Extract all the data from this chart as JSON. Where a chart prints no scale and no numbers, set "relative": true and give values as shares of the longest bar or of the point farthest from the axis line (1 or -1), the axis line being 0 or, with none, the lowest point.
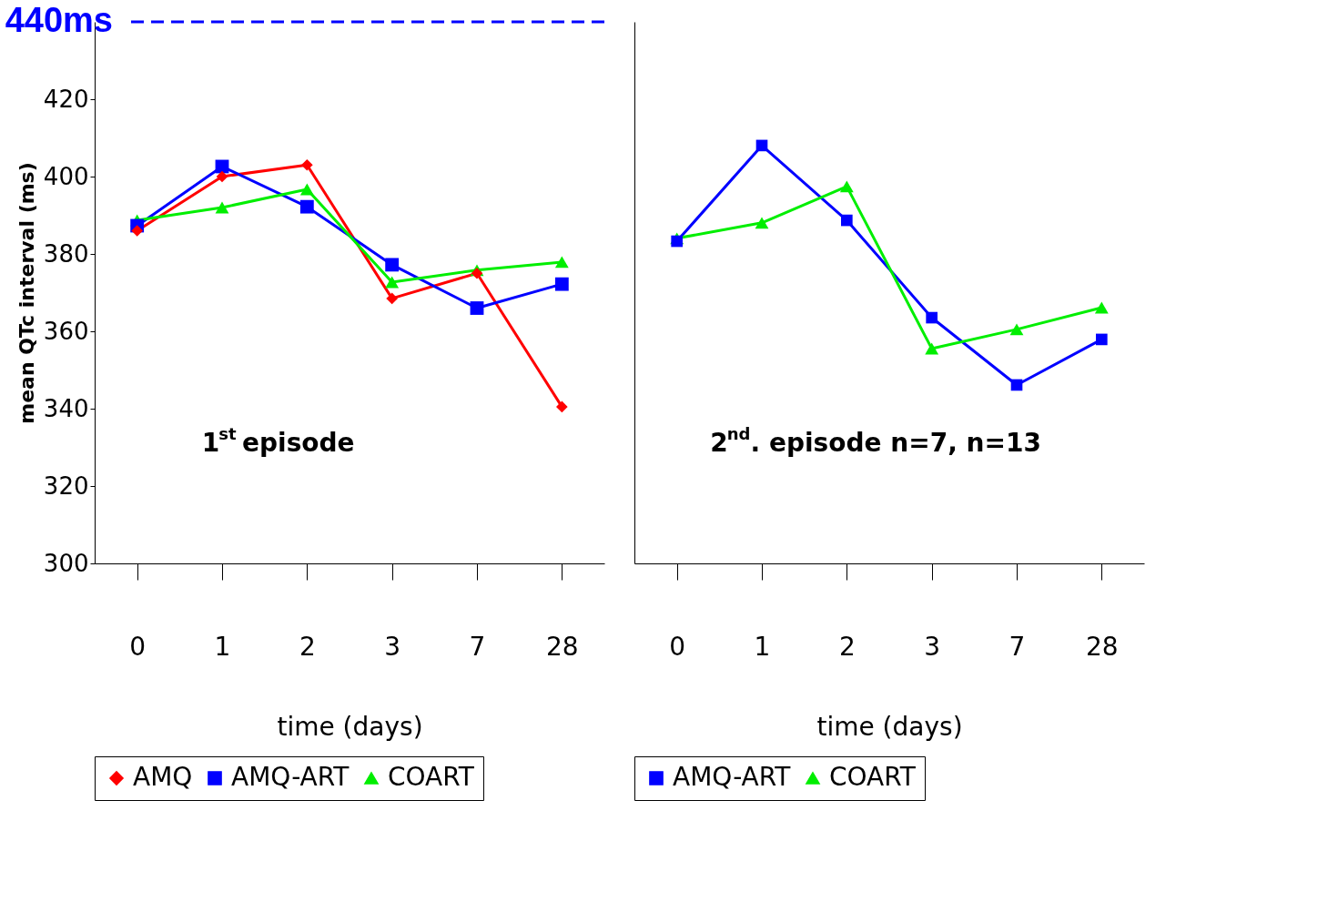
{
  "chart_data": [
    {
      "type": "line",
      "ylabel": "mean QTc interval (ms)",
      "xlabel": "time (days)",
      "categories": [
        "0",
        "1",
        "2",
        "3",
        "7",
        "28"
      ],
      "ylim": [
        300,
        440
      ],
      "yticks": [
        300,
        320,
        340,
        360,
        380,
        400,
        420
      ],
      "ref_lines": [
        {
          "axis": "y",
          "value": 440,
          "label": "440ms",
          "color": "#0000ff",
          "line_style": "dashed"
        }
      ],
      "annotations": [
        "1$^{st}$ episode"
      ],
      "legend": "bottom",
      "grid": false,
      "series": [
        {
          "name": "AMQ",
          "color": "#ff0000",
          "marker": "diamond",
          "values": [
            386,
            400,
            403,
            368.5,
            375,
            340.5
          ]
        },
        {
          "name": "AMQ-ART",
          "color": "#0000ff",
          "marker": "square",
          "values": [
            387.3,
            402.6,
            392.2,
            377.2,
            366,
            372.2
          ]
        },
        {
          "name": "COART",
          "color": "#00ee00",
          "marker": "triangle",
          "values": [
            388.7,
            392,
            396.7,
            372.7,
            375.8,
            377.9
          ]
        }
      ]
    },
    {
      "type": "line",
      "xlabel": "time (days)",
      "relative": true,
      "categories": [
        "0",
        "1",
        "2",
        "3",
        "7",
        "28"
      ],
      "annotations": [
        "2$^{nd}$. episode n=7, n=13"
      ],
      "legend": "bottom",
      "grid": false,
      "series": [
        {
          "name": "AMQ-ART",
          "color": "#0000ff",
          "marker": "square",
          "values": [
            0.771,
            1.0,
            0.821,
            0.588,
            0.427,
            0.536
          ]
        },
        {
          "name": "COART",
          "color": "#00ee00",
          "marker": "triangle",
          "values": [
            0.778,
            0.815,
            0.902,
            0.514,
            0.56,
            0.612
          ]
        }
      ]
    }
  ]
}
